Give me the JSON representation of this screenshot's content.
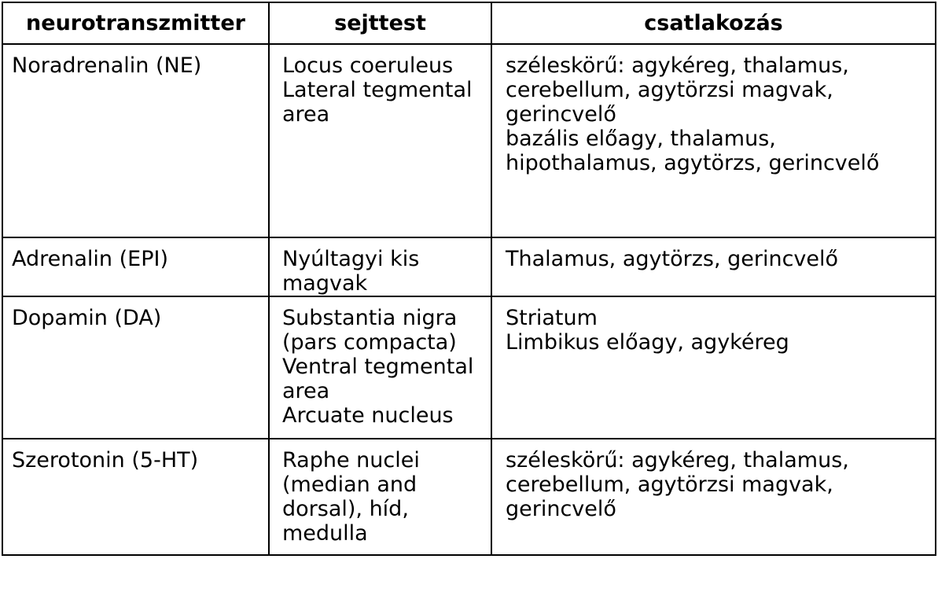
{
  "headers": [
    "neurotranszmitter",
    "sejttest",
    "csatlakozás"
  ],
  "rows": [
    {
      "neurotransmitter": "Noradrenalin (NE)",
      "sejttest": [
        "Locus coeruleus",
        "Lateral tegmental",
        "area"
      ],
      "csatlakozas": [
        "széleskörű: agykéreg, thalamus,",
        "cerebellum, agytörzsi magvak,",
        "gerincvelő",
        "bazális előagy, thalamus,",
        "hipothalamus, agytörzs, gerincvelő"
      ]
    },
    {
      "neurotransmitter": "Adrenalin (EPI)",
      "sejttest": [
        "Nyúltagyi kis",
        "magvak"
      ],
      "csatlakozas": [
        "Thalamus, agytörzs, gerincvelő"
      ]
    },
    {
      "neurotransmitter": "Dopamin (DA)",
      "sejttest": [
        "Substantia nigra",
        "(pars compacta)",
        "Ventral tegmental",
        "area",
        "Arcuate nucleus"
      ],
      "csatlakozas": [
        "Striatum",
        "Limbikus előagy, agykéreg"
      ]
    },
    {
      "neurotransmitter": "Szerotonin (5-HT)",
      "sejttest": [
        "Raphe nuclei",
        "(median and",
        "dorsal), híd,",
        "medulla"
      ],
      "csatlakozas": [
        "széleskörű: agykéreg, thalamus,",
        "cerebellum, agytörzsi magvak,",
        "gerincvelő"
      ]
    }
  ]
}
